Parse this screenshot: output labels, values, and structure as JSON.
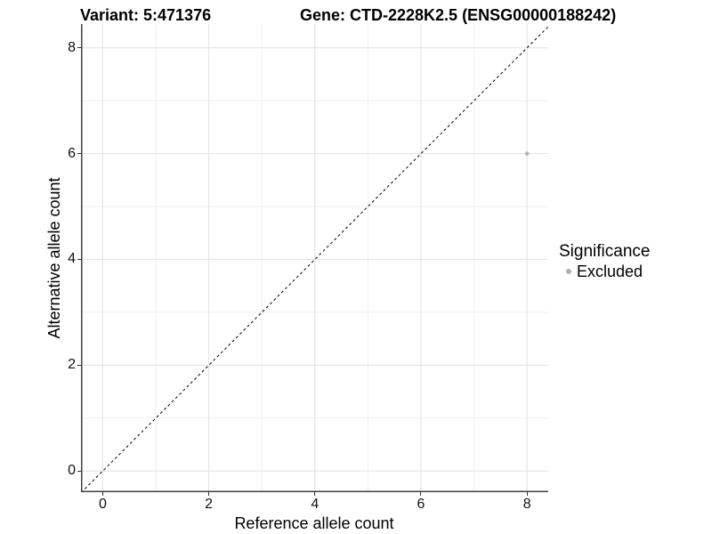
{
  "header": {
    "variant_title": "Variant: 5:471376",
    "gene_title": "Gene: CTD-2228K2.5 (ENSG00000188242)"
  },
  "chart_data": {
    "type": "scatter",
    "title_left": "Variant: 5:471376",
    "title_right": "Gene: CTD-2228K2.5 (ENSG00000188242)",
    "xlabel": "Reference allele count",
    "ylabel": "Alternative allele count",
    "xlim": [
      -0.41,
      8.4
    ],
    "ylim": [
      -0.4,
      8.45
    ],
    "x_ticks": [
      0,
      2,
      4,
      6,
      8
    ],
    "y_ticks": [
      0,
      2,
      4,
      6,
      8
    ],
    "x_minor_ticks": [
      1,
      3,
      5,
      7
    ],
    "y_minor_ticks": [
      1,
      3,
      5,
      7
    ],
    "grid": "major+minor",
    "identity_line": {
      "type": "dashed",
      "equation": "y = x",
      "color": "#000000"
    },
    "series": [
      {
        "name": "Excluded",
        "color": "#b0b0b0",
        "points": [
          {
            "x": 8,
            "y": 6
          }
        ]
      }
    ],
    "legend": {
      "title": "Significance",
      "position": "right",
      "items": [
        {
          "label": "Excluded",
          "color": "#b0b0b0"
        }
      ]
    },
    "colors": {
      "grid_major": "#e2e2e2",
      "grid_minor": "#efefef",
      "axis_line": "#404040",
      "tick_mark": "#333333",
      "point": "#b0b0b0",
      "dashed_line": "#000000",
      "background": "#ffffff"
    }
  }
}
